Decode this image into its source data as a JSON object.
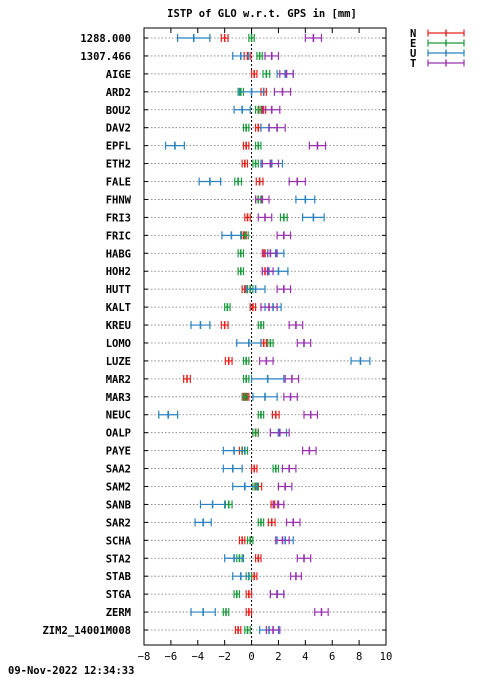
{
  "chart_data": {
    "type": "scatter",
    "title": "ISTP of GLO w.r.t. GPS in [mm]",
    "footer": "09-Nov-2022 12:34:33",
    "xlim": [
      -8,
      10
    ],
    "xticks": [
      -8,
      -6,
      -4,
      -2,
      0,
      2,
      4,
      6,
      8,
      10
    ],
    "grid": "horizontal dotted",
    "reference_line": "x = 0 dotted vertical",
    "legend_placement": "top-right outside",
    "categories": [
      "1288.000",
      "1307.466",
      "AIGE",
      "ARD2",
      "BOU2",
      "DAV2",
      "EPFL",
      "ETH2",
      "FALE",
      "FHNW",
      "FRI3",
      "FRIC",
      "HABG",
      "HOH2",
      "HUTT",
      "KALT",
      "KREU",
      "LOMO",
      "LUZE",
      "MAR2",
      "MAR3",
      "NEUC",
      "OALP",
      "PAYE",
      "SAA2",
      "SAM2",
      "SANB",
      "SAR2",
      "SCHA",
      "STA2",
      "STAB",
      "STGA",
      "ZERM",
      "ZIM2_14001M008"
    ],
    "series": [
      {
        "name": "N",
        "color": "#e8201c",
        "values": [
          -2.0,
          -0.3,
          0.2,
          0.9,
          0.8,
          0.5,
          -0.4,
          -0.5,
          0.6,
          0.5,
          -0.3,
          -0.6,
          1.0,
          1.0,
          -0.5,
          0.1,
          -2.0,
          0.9,
          -1.7,
          -4.8,
          -0.4,
          1.8,
          0.3,
          -0.7,
          0.2,
          0.5,
          1.7,
          1.5,
          -0.7,
          0.5,
          0.2,
          -0.2,
          -0.2,
          -1.0
        ],
        "errors": [
          0.25,
          0.25,
          0.2,
          0.2,
          0.25,
          0.2,
          0.2,
          0.2,
          0.25,
          0.2,
          0.2,
          0.2,
          0.2,
          0.2,
          0.2,
          0.2,
          0.25,
          0.2,
          0.25,
          0.25,
          0.2,
          0.25,
          0.2,
          0.2,
          0.2,
          0.25,
          0.25,
          0.25,
          0.2,
          0.2,
          0.2,
          0.2,
          0.2,
          0.2
        ]
      },
      {
        "name": "E",
        "color": "#1a9a3c",
        "values": [
          0.0,
          0.6,
          1.1,
          -0.8,
          0.5,
          -0.4,
          0.5,
          0.3,
          -1.0,
          0.5,
          2.4,
          -0.5,
          -0.8,
          -0.8,
          -0.1,
          -1.8,
          0.7,
          1.4,
          -0.4,
          -0.4,
          -0.5,
          0.7,
          0.3,
          -0.5,
          1.8,
          0.3,
          -1.7,
          0.7,
          -0.1,
          -0.9,
          -0.2,
          -1.1,
          -1.9,
          -0.3
        ],
        "errors": [
          0.2,
          0.2,
          0.25,
          0.2,
          0.2,
          0.2,
          0.2,
          0.2,
          0.25,
          0.2,
          0.25,
          0.25,
          0.2,
          0.2,
          0.2,
          0.2,
          0.2,
          0.2,
          0.2,
          0.2,
          0.2,
          0.2,
          0.2,
          0.2,
          0.2,
          0.2,
          0.25,
          0.2,
          0.2,
          0.2,
          0.2,
          0.2,
          0.2,
          0.2
        ]
      },
      {
        "name": "U",
        "color": "#2a82c0",
        "values": [
          -4.3,
          -0.8,
          2.5,
          0.0,
          -0.7,
          1.3,
          -5.7,
          1.5,
          -3.1,
          4.0,
          4.6,
          -1.5,
          1.8,
          2.0,
          0.3,
          1.6,
          -3.8,
          -0.2,
          8.1,
          1.2,
          1.0,
          -6.2,
          2.0,
          -1.3,
          -1.4,
          -0.5,
          -2.9,
          -3.6,
          2.5,
          -1.3,
          -0.8,
          1.9,
          -3.6,
          1.3
        ],
        "errors": [
          1.2,
          0.6,
          0.6,
          0.9,
          0.6,
          0.6,
          0.7,
          0.8,
          0.8,
          0.7,
          0.8,
          0.7,
          0.6,
          0.7,
          0.7,
          0.6,
          0.7,
          0.9,
          0.7,
          1.2,
          0.9,
          0.7,
          0.6,
          0.8,
          0.7,
          0.9,
          0.9,
          0.6,
          0.6,
          0.7,
          0.6,
          0.5,
          0.9,
          0.7
        ]
      },
      {
        "name": "T",
        "color": "#9a30b0",
        "values": [
          4.6,
          1.5,
          2.6,
          2.3,
          1.5,
          1.9,
          4.9,
          1.4,
          3.4,
          0.8,
          1.0,
          2.4,
          1.4,
          1.2,
          2.4,
          1.3,
          3.3,
          3.9,
          1.1,
          3.0,
          2.9,
          4.4,
          2.1,
          4.3,
          2.8,
          2.5,
          2.0,
          3.1,
          2.3,
          3.9,
          3.3,
          1.9,
          5.2,
          1.6
        ],
        "errors": [
          0.6,
          0.5,
          0.5,
          0.6,
          0.6,
          0.6,
          0.6,
          0.6,
          0.6,
          0.5,
          0.5,
          0.5,
          0.5,
          0.4,
          0.5,
          0.6,
          0.5,
          0.5,
          0.5,
          0.5,
          0.5,
          0.5,
          0.7,
          0.5,
          0.5,
          0.5,
          0.4,
          0.5,
          0.5,
          0.5,
          0.4,
          0.5,
          0.5,
          0.5
        ]
      }
    ]
  }
}
